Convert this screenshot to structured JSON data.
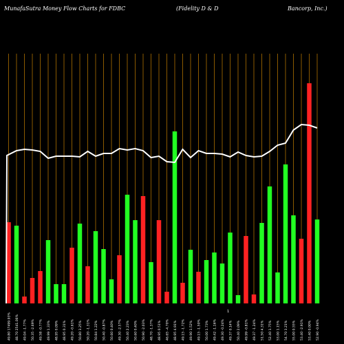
{
  "header": {
    "left": "MunafaSutra  Money Flow  Charts for FDBC",
    "mid": "(Fidelity D & D",
    "right": "Bancorp,  Inc.)"
  },
  "colors": {
    "background": "#000000",
    "grid": "#8B5A00",
    "up": "#22FF22",
    "down": "#FF2222",
    "line": "#FFFFFF",
    "label": "#FFFFFF"
  },
  "chart_data": {
    "type": "bar",
    "title": "MunafaSutra Money Flow Charts for FDBC (Fidelity D & D Bancorp, Inc.)",
    "grid": true,
    "bars": [
      {
        "v": 118,
        "dir": "down",
        "label": "49.80 17499.93%"
      },
      {
        "v": 113,
        "dir": "up",
        "label": "48.70 2541.06%"
      },
      {
        "v": 10,
        "dir": "down",
        "label": "49.04 -1.77%"
      },
      {
        "v": 37,
        "dir": "down",
        "label": "50.35 -2.69%"
      },
      {
        "v": 47,
        "dir": "down",
        "label": "49.58 -0.77%"
      },
      {
        "v": 92,
        "dir": "up",
        "label": "49.99 1.33%"
      },
      {
        "v": 28,
        "dir": "up",
        "label": "48.95 0.09%"
      },
      {
        "v": 28,
        "dir": "up",
        "label": "48.95 0.31%"
      },
      {
        "v": 81,
        "dir": "down",
        "label": "49.20 -0.61%"
      },
      {
        "v": 116,
        "dir": "up",
        "label": "50.80 3.25%"
      },
      {
        "v": 54,
        "dir": "down",
        "label": "50.20 -1.31%"
      },
      {
        "v": 105,
        "dir": "up",
        "label": "50.84 1.22%"
      },
      {
        "v": 79,
        "dir": "up",
        "label": "50.40 -0.87%"
      },
      {
        "v": 35,
        "dir": "up",
        "label": "50.60 0.40%"
      },
      {
        "v": 70,
        "dir": "down",
        "label": "49.30 -2.57%"
      },
      {
        "v": 158,
        "dir": "up",
        "label": "50.40 2.23%"
      },
      {
        "v": 121,
        "dir": "up",
        "label": "50.60 0.40%"
      },
      {
        "v": 156,
        "dir": "down",
        "label": "50.90 -2.03%"
      },
      {
        "v": 60,
        "dir": "up",
        "label": "48.70 -1.37%"
      },
      {
        "v": 121,
        "dir": "down",
        "label": "48.95 0.51%"
      },
      {
        "v": 17,
        "dir": "down",
        "label": "46.65 -4.70%"
      },
      {
        "v": 250,
        "dir": "up",
        "label": "48.95 4.91%"
      },
      {
        "v": 30,
        "dir": "down",
        "label": "49.15 -1.72%"
      },
      {
        "v": 78,
        "dir": "up",
        "label": "49.90 1.52%"
      },
      {
        "v": 46,
        "dir": "down",
        "label": "49.15 -1.50%"
      },
      {
        "v": 63,
        "dir": "up",
        "label": "50.00 1.73%"
      },
      {
        "v": 74,
        "dir": "up",
        "label": "49.42 -1.16%"
      },
      {
        "v": 58,
        "dir": "up",
        "label": "49.30 -0.24%"
      },
      {
        "v": 103,
        "dir": "up",
        "label": "49.37 0.14%"
      },
      {
        "v": 12,
        "dir": "up",
        "label": "50.40 2.09%"
      },
      {
        "v": 98,
        "dir": "down",
        "label": "49.99 -0.81%"
      },
      {
        "v": 13,
        "dir": "down",
        "label": "49.37 -1.24%"
      },
      {
        "v": 117,
        "dir": "up",
        "label": "51.50 4.31%"
      },
      {
        "v": 170,
        "dir": "up",
        "label": "52.40 1.75%"
      },
      {
        "v": 45,
        "dir": "up",
        "label": "53.00 1.15%"
      },
      {
        "v": 202,
        "dir": "up",
        "label": "54.70 3.21%"
      },
      {
        "v": 128,
        "dir": "up",
        "label": "55.00 0.55%"
      },
      {
        "v": 94,
        "dir": "down",
        "label": "53.40 -2.91%"
      },
      {
        "v": 320,
        "dir": "down",
        "label": "53.40 0.00%"
      },
      {
        "v": 122,
        "dir": "up",
        "label": "52.90 -0.94%"
      }
    ],
    "price_line": [
      215,
      222,
      224,
      223,
      221,
      211,
      214,
      214,
      214,
      213,
      221,
      214,
      218,
      218,
      225,
      223,
      225,
      222,
      212,
      214,
      206,
      205,
      224,
      212,
      222,
      218,
      218,
      217,
      213,
      220,
      215,
      213,
      214,
      221,
      230,
      233,
      252,
      260,
      259,
      255
    ],
    "extra_label": "1"
  }
}
